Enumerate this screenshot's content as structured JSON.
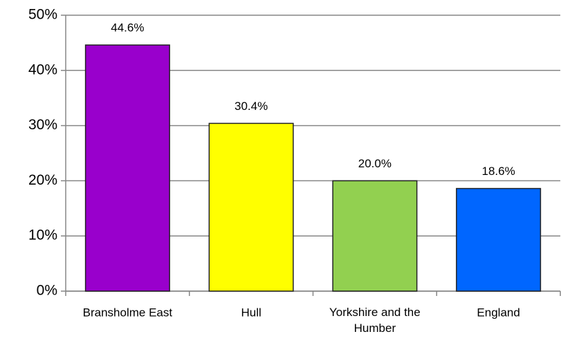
{
  "chart_data": {
    "type": "bar",
    "categories": [
      "Bransholme East",
      "Hull",
      "Yorkshire and the Humber",
      "England"
    ],
    "values": [
      44.6,
      30.4,
      20.0,
      18.6
    ],
    "value_labels": [
      "44.6%",
      "30.4%",
      "20.0%",
      "18.6%"
    ],
    "colors": [
      "#9900cc",
      "#ffff00",
      "#92d050",
      "#0066ff"
    ],
    "ylim": [
      0,
      50
    ],
    "yticks": [
      {
        "value": 0,
        "label": "0%"
      },
      {
        "value": 10,
        "label": "10%"
      },
      {
        "value": 20,
        "label": "20%"
      },
      {
        "value": 30,
        "label": "30%"
      },
      {
        "value": 40,
        "label": "40%"
      },
      {
        "value": 50,
        "label": "50%"
      }
    ],
    "grid": true
  }
}
